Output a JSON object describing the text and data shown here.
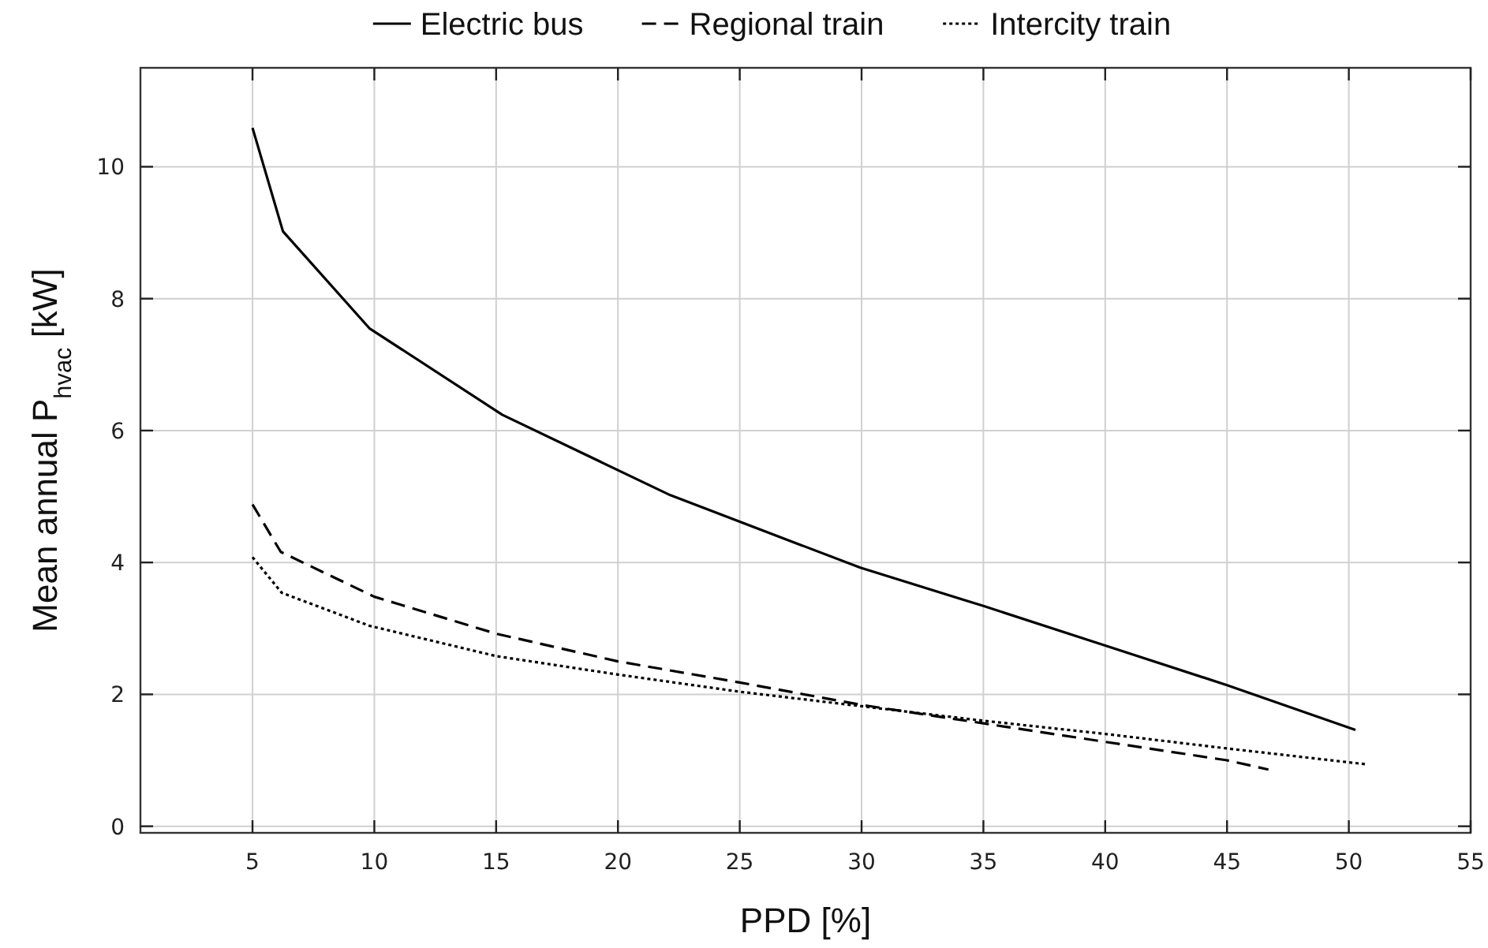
{
  "chart_data": {
    "type": "line",
    "xlabel": "PPD [%]",
    "ylabel": "Mean annual P$_{hvac}$ [kW]",
    "xlim": [
      0.4,
      55
    ],
    "xticks": [
      5,
      10,
      15,
      20,
      25,
      30,
      35,
      40,
      45,
      50,
      55
    ],
    "ylim": [
      -0.1,
      11.5
    ],
    "yticks": [
      0,
      2,
      4,
      6,
      8,
      10
    ],
    "tick_labels": "xy",
    "grid": true,
    "legend": "top",
    "marker": "none",
    "series": [
      {
        "name": "Electric bus",
        "color": "#000000",
        "line_style": "solid",
        "x": [
          5,
          6.25,
          9.8,
          15.25,
          22.15,
          29.95,
          35,
          40,
          45,
          50.27
        ],
        "values": [
          10.59,
          9.02,
          7.55,
          6.24,
          5.02,
          3.92,
          3.34,
          2.74,
          2.14,
          1.46
        ]
      },
      {
        "name": "Regional train",
        "color": "#000000",
        "line_style": "dashed",
        "x": [
          5,
          6.16,
          10,
          15,
          20,
          25,
          30,
          35,
          40,
          45,
          46.7
        ],
        "values": [
          4.88,
          4.16,
          3.48,
          2.92,
          2.5,
          2.18,
          1.84,
          1.56,
          1.28,
          1.0,
          0.86
        ]
      },
      {
        "name": "Intercity train",
        "color": "#000000",
        "line_style": "dotted",
        "x": [
          5,
          6.2,
          9.8,
          15,
          20,
          25,
          30,
          35,
          40,
          45,
          50.7
        ],
        "values": [
          4.08,
          3.54,
          3.04,
          2.58,
          2.3,
          2.04,
          1.82,
          1.6,
          1.4,
          1.18,
          0.94
        ]
      }
    ]
  }
}
